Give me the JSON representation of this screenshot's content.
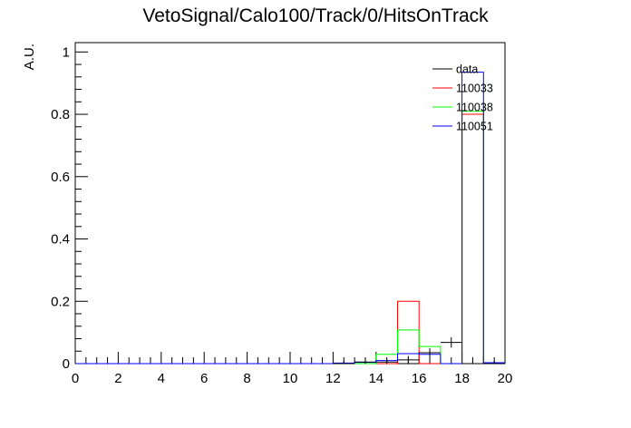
{
  "chart_data": {
    "type": "histogram",
    "title": "VetoSignal/Calo100/Track/0/HitsOnTrack",
    "xlabel": "",
    "ylabel": "A.U.",
    "xlim": [
      0,
      20
    ],
    "ylim": [
      0,
      1.03
    ],
    "x_ticks": [
      "0",
      "2",
      "4",
      "6",
      "8",
      "10",
      "12",
      "14",
      "16",
      "18",
      "20"
    ],
    "y_ticks": [
      "0",
      "0.2",
      "0.4",
      "0.6",
      "0.8",
      "1"
    ],
    "grid": false,
    "legend_position": "top-right",
    "bin_edges": [
      12,
      13,
      14,
      15,
      16,
      17,
      18,
      19,
      20
    ],
    "series": [
      {
        "name": "data",
        "style": "points",
        "color": "#000000",
        "values": [
          0.0,
          0.005,
          0.005,
          0.012,
          0.035,
          0.068,
          0.0,
          0.0
        ],
        "errors": [
          0.0,
          0.002,
          0.002,
          0.004,
          0.006,
          0.008,
          0.0,
          0.0
        ]
      },
      {
        "name": "110033",
        "style": "step",
        "color": "#ff0000",
        "values": [
          0.0,
          0.0,
          0.0,
          0.2,
          0.0,
          0.0,
          0.8,
          0.0
        ]
      },
      {
        "name": "110038",
        "style": "step",
        "color": "#00ff00",
        "values": [
          0.0,
          0.0,
          0.03,
          0.108,
          0.055,
          0.0,
          0.81,
          0.0
        ]
      },
      {
        "name": "110051",
        "style": "step",
        "color": "#0000ff",
        "values": [
          0.002,
          0.004,
          0.01,
          0.032,
          0.03,
          0.0,
          0.935,
          0.003
        ]
      }
    ]
  }
}
